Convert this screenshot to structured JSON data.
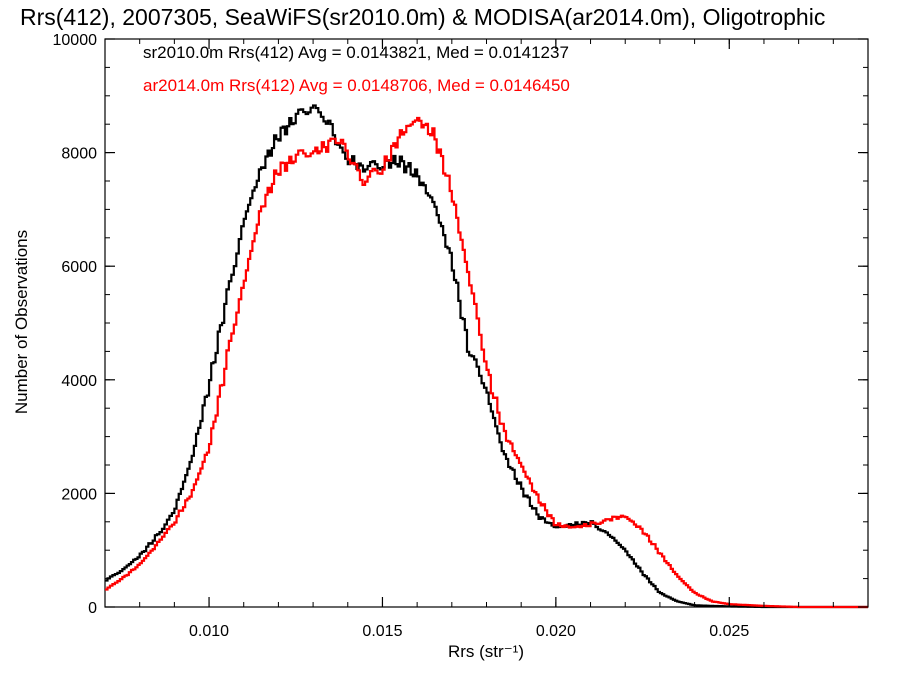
{
  "chart_data": {
    "type": "line",
    "step": true,
    "title": "Rrs(412), 2007305, SeaWiFS(sr2010.0m) & MODISA(ar2014.0m), Oligotrophic",
    "xlabel": "Rrs (str⁻¹)",
    "ylabel": "Number of Observations",
    "xlim": [
      0.007,
      0.029
    ],
    "ylim": [
      0,
      10000
    ],
    "x_ticks": [
      0.01,
      0.015,
      0.02,
      0.025
    ],
    "x_tick_labels": [
      "0.010",
      "0.015",
      "0.020",
      "0.025"
    ],
    "y_ticks": [
      0,
      2000,
      4000,
      6000,
      8000,
      10000
    ],
    "y_tick_labels": [
      "0",
      "2000",
      "4000",
      "6000",
      "8000",
      "10000"
    ],
    "legend_placement": "top-left",
    "grid": false,
    "series": [
      {
        "name": "sr2010.0m Rrs(412) Avg = 0.0143821, Med = 0.0141237",
        "color": "#000000",
        "points": [
          [
            0.007,
            450
          ],
          [
            0.0075,
            650
          ],
          [
            0.008,
            900
          ],
          [
            0.0085,
            1250
          ],
          [
            0.009,
            1700
          ],
          [
            0.0095,
            2600
          ],
          [
            0.01,
            3900
          ],
          [
            0.0105,
            5400
          ],
          [
            0.011,
            6800
          ],
          [
            0.0115,
            7700
          ],
          [
            0.012,
            8300
          ],
          [
            0.0125,
            8600
          ],
          [
            0.013,
            8850
          ],
          [
            0.0133,
            8700
          ],
          [
            0.0137,
            8200
          ],
          [
            0.014,
            7900
          ],
          [
            0.0145,
            7700
          ],
          [
            0.015,
            7800
          ],
          [
            0.0155,
            7850
          ],
          [
            0.016,
            7600
          ],
          [
            0.0165,
            7100
          ],
          [
            0.017,
            6100
          ],
          [
            0.0175,
            4500
          ],
          [
            0.018,
            3800
          ],
          [
            0.0185,
            2700
          ],
          [
            0.019,
            2100
          ],
          [
            0.0195,
            1600
          ],
          [
            0.02,
            1400
          ],
          [
            0.0205,
            1450
          ],
          [
            0.021,
            1480
          ],
          [
            0.0215,
            1300
          ],
          [
            0.022,
            1000
          ],
          [
            0.0225,
            600
          ],
          [
            0.023,
            250
          ],
          [
            0.0235,
            100
          ],
          [
            0.024,
            30
          ],
          [
            0.025,
            10
          ],
          [
            0.026,
            0
          ],
          [
            0.029,
            0
          ]
        ]
      },
      {
        "name": "ar2014.0m Rrs(412) Avg = 0.0148706, Med = 0.0146450",
        "color": "#ff0000",
        "points": [
          [
            0.007,
            300
          ],
          [
            0.0075,
            500
          ],
          [
            0.008,
            750
          ],
          [
            0.0085,
            1100
          ],
          [
            0.009,
            1500
          ],
          [
            0.0095,
            2000
          ],
          [
            0.01,
            2800
          ],
          [
            0.0105,
            4300
          ],
          [
            0.011,
            5700
          ],
          [
            0.0115,
            7000
          ],
          [
            0.012,
            7700
          ],
          [
            0.0125,
            7900
          ],
          [
            0.013,
            8000
          ],
          [
            0.0135,
            8150
          ],
          [
            0.0138,
            8300
          ],
          [
            0.0142,
            7700
          ],
          [
            0.0145,
            7500
          ],
          [
            0.015,
            7700
          ],
          [
            0.0155,
            8300
          ],
          [
            0.016,
            8600
          ],
          [
            0.0165,
            8300
          ],
          [
            0.017,
            7300
          ],
          [
            0.0175,
            5800
          ],
          [
            0.018,
            4200
          ],
          [
            0.0185,
            3100
          ],
          [
            0.019,
            2500
          ],
          [
            0.0195,
            1900
          ],
          [
            0.02,
            1450
          ],
          [
            0.0205,
            1400
          ],
          [
            0.021,
            1450
          ],
          [
            0.0215,
            1550
          ],
          [
            0.022,
            1600
          ],
          [
            0.0225,
            1350
          ],
          [
            0.023,
            950
          ],
          [
            0.0235,
            550
          ],
          [
            0.024,
            250
          ],
          [
            0.0245,
            100
          ],
          [
            0.025,
            50
          ],
          [
            0.026,
            20
          ],
          [
            0.027,
            0
          ],
          [
            0.029,
            0
          ]
        ]
      }
    ]
  }
}
